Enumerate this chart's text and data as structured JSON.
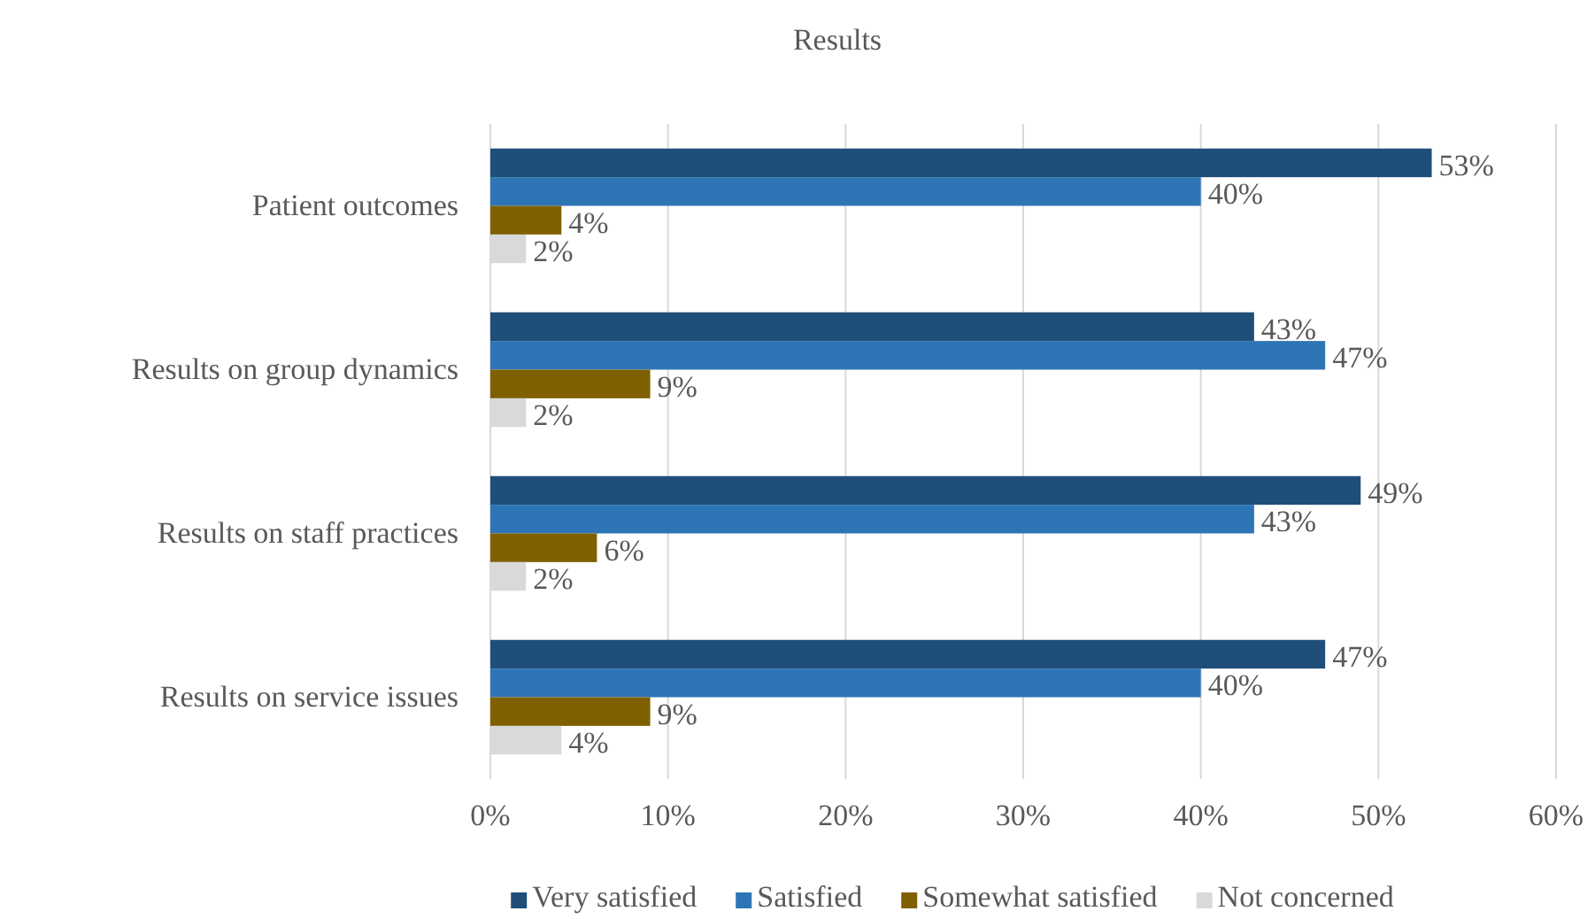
{
  "chart_data": {
    "type": "bar",
    "orientation": "horizontal",
    "title": "Results",
    "categories": [
      "Patient outcomes",
      "Results on group dynamics",
      "Results on staff practices",
      "Results on service issues"
    ],
    "series": [
      {
        "name": "Very satisfied",
        "color": "#1f4e79",
        "values": [
          53,
          43,
          49,
          47
        ],
        "value_labels": [
          "53%",
          "43%",
          "49%",
          "47%"
        ]
      },
      {
        "name": "Satisfied",
        "color": "#2e75b6",
        "values": [
          40,
          47,
          43,
          40
        ],
        "value_labels": [
          "40%",
          "47%",
          "43%",
          "40%"
        ]
      },
      {
        "name": "Somewhat satisfied",
        "color": "#7f6000",
        "values": [
          4,
          9,
          6,
          9
        ],
        "value_labels": [
          "4%",
          "9%",
          "6%",
          "9%"
        ]
      },
      {
        "name": "Not concerned",
        "color": "#d9d9d9",
        "values": [
          2,
          2,
          2,
          4
        ],
        "value_labels": [
          "2%",
          "2%",
          "2%",
          "4%"
        ]
      }
    ],
    "xlim": [
      0,
      60
    ],
    "xticks": [
      {
        "value": 0,
        "label": "0%"
      },
      {
        "value": 10,
        "label": "10%"
      },
      {
        "value": 20,
        "label": "20%"
      },
      {
        "value": 30,
        "label": "30%"
      },
      {
        "value": 40,
        "label": "40%"
      },
      {
        "value": 50,
        "label": "50%"
      },
      {
        "value": 60,
        "label": "60%"
      }
    ],
    "grid": "x",
    "legend": "bottom"
  }
}
